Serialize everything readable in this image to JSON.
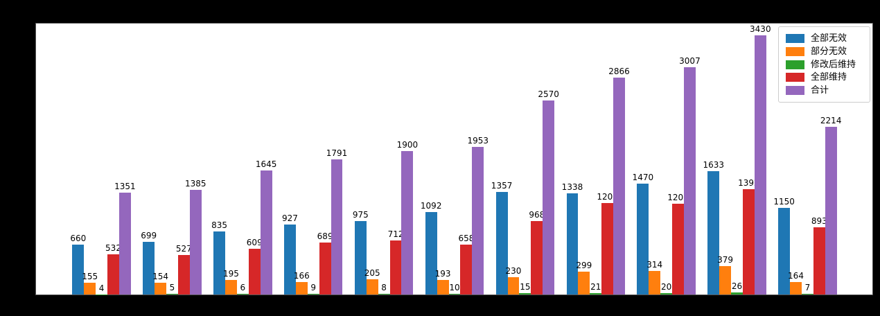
{
  "figure": {
    "background_color": "#000000",
    "plot_background_color": "#ffffff"
  },
  "legend": {
    "position": "upper-right"
  },
  "chart_data": {
    "type": "bar",
    "grouped": true,
    "num_groups": 11,
    "categories": [
      "",
      "",
      "",
      "",
      "",
      "",
      "",
      "",
      "",
      "",
      ""
    ],
    "x_tick_labels_visible": false,
    "y_axis_labels_visible": false,
    "bar_value_labels_shown": true,
    "ylim": [
      0,
      3602
    ],
    "series": [
      {
        "name": "全部无效",
        "color": "#1f77b4",
        "values": [
          660,
          699,
          835,
          927,
          975,
          1092,
          1357,
          1338,
          1470,
          1633,
          1150
        ]
      },
      {
        "name": "部分无效",
        "color": "#ff7f0e",
        "values": [
          155,
          154,
          195,
          166,
          205,
          193,
          230,
          299,
          314,
          379,
          164
        ]
      },
      {
        "name": "修改后维持",
        "color": "#2ca02c",
        "values": [
          4,
          5,
          6,
          9,
          8,
          10,
          15,
          21,
          20,
          26,
          7
        ]
      },
      {
        "name": "全部维持",
        "color": "#d62728",
        "values": [
          532,
          527,
          609,
          689,
          712,
          658,
          968,
          1208,
          1203,
          1392,
          893
        ]
      },
      {
        "name": "合计",
        "color": "#9467bd",
        "values": [
          1351,
          1385,
          1645,
          1791,
          1900,
          1953,
          2570,
          2866,
          3007,
          3430,
          2214
        ]
      }
    ]
  }
}
